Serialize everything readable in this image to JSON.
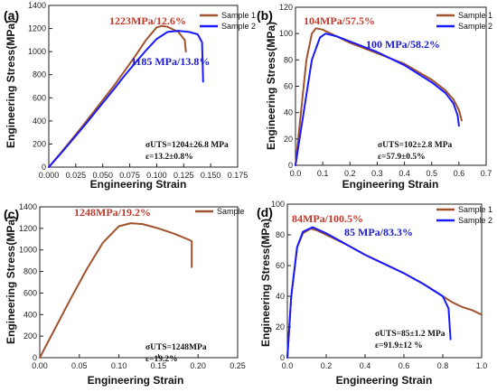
{
  "colors": {
    "sample1": "#a0522d",
    "sample2": "#1a1aff",
    "annotation_red": "#c0392b",
    "annotation_blue": "#1a1acd"
  },
  "chart_data": [
    {
      "panel_label": "(a)",
      "type": "line",
      "xlabel": "Engineering Strain",
      "ylabel": "Engineering Stress(MPa)",
      "xlim": [
        0,
        0.175
      ],
      "ylim": [
        0,
        1400
      ],
      "xticks": [
        "0.000",
        "0.025",
        "0.050",
        "0.075",
        "0.100",
        "0.125",
        "0.150",
        "0.175"
      ],
      "yticks": [
        "0",
        "200",
        "400",
        "600",
        "800",
        "1000",
        "1200",
        "1400"
      ],
      "legend": [
        "Sample 1",
        "Sample 2"
      ],
      "legend_position": "top-right",
      "annotations": [
        "1223MPa/12.6%",
        "1185 MPa/13.8%"
      ],
      "stats": [
        "σUTS=1204±26.8 MPa",
        "ε=13.2±0.8%"
      ],
      "series": [
        {
          "name": "Sample 1",
          "color": "#a0522d",
          "x": [
            0,
            0.01,
            0.02,
            0.03,
            0.04,
            0.05,
            0.06,
            0.07,
            0.08,
            0.09,
            0.1,
            0.105,
            0.11,
            0.12,
            0.126,
            0.127
          ],
          "y": [
            0,
            110,
            225,
            340,
            460,
            580,
            700,
            830,
            960,
            1100,
            1210,
            1223,
            1215,
            1170,
            1100,
            1000
          ]
        },
        {
          "name": "Sample 2",
          "color": "#1a1aff",
          "x": [
            0,
            0.01,
            0.02,
            0.03,
            0.04,
            0.05,
            0.06,
            0.07,
            0.08,
            0.09,
            0.1,
            0.11,
            0.12,
            0.13,
            0.138,
            0.142,
            0.143
          ],
          "y": [
            0,
            105,
            215,
            325,
            440,
            555,
            670,
            790,
            900,
            1010,
            1110,
            1170,
            1180,
            1170,
            1150,
            1080,
            740
          ]
        }
      ]
    },
    {
      "panel_label": "(b)",
      "type": "line",
      "xlabel": "Engineering Strain",
      "ylabel": "Engineering Stress(MPa)",
      "xlim": [
        0,
        0.7
      ],
      "ylim": [
        0,
        120
      ],
      "xticks": [
        "0.0",
        "0.1",
        "0.2",
        "0.3",
        "0.4",
        "0.5",
        "0.6",
        "0.7"
      ],
      "yticks": [
        "0",
        "20",
        "40",
        "60",
        "80",
        "100",
        "120"
      ],
      "legend": [
        "Sample 1",
        "Sample 2"
      ],
      "legend_position": "top-right",
      "annotations": [
        "104MPa/57.5%",
        "100 MPa/58.2%"
      ],
      "stats": [
        "σUTS=102±2.8 MPa",
        "ε=57.9±0.5%"
      ],
      "series": [
        {
          "name": "Sample 1",
          "color": "#a0522d",
          "x": [
            0,
            0.02,
            0.04,
            0.06,
            0.075,
            0.1,
            0.15,
            0.2,
            0.3,
            0.4,
            0.5,
            0.55,
            0.58,
            0.6,
            0.61
          ],
          "y": [
            0,
            40,
            80,
            100,
            104,
            103,
            98,
            93,
            85,
            77,
            65,
            57,
            50,
            42,
            34
          ]
        },
        {
          "name": "Sample 2",
          "color": "#1a1aff",
          "x": [
            0,
            0.03,
            0.06,
            0.09,
            0.11,
            0.15,
            0.2,
            0.3,
            0.4,
            0.5,
            0.55,
            0.58,
            0.595,
            0.6
          ],
          "y": [
            0,
            40,
            80,
            97,
            100,
            98,
            94,
            86,
            76,
            63,
            55,
            47,
            38,
            30
          ]
        }
      ]
    },
    {
      "panel_label": "(c)",
      "type": "line",
      "xlabel": "Engineering Strain",
      "ylabel": "Engineering Stress(MPa)",
      "xlim": [
        0,
        0.25
      ],
      "ylim": [
        0,
        1400
      ],
      "xticks": [
        "0.00",
        "0.05",
        "0.10",
        "0.15",
        "0.20",
        "0.25"
      ],
      "yticks": [
        "0",
        "200",
        "400",
        "600",
        "800",
        "1000",
        "1200",
        "1400"
      ],
      "legend": [
        "Sample"
      ],
      "legend_position": "top-right",
      "annotations": [
        "1248MPa/19.2%"
      ],
      "stats": [
        "σUTS=1248MPa",
        "ε=19.2%"
      ],
      "series": [
        {
          "name": "Sample",
          "color": "#a0522d",
          "x": [
            0,
            0.02,
            0.04,
            0.06,
            0.08,
            0.1,
            0.115,
            0.13,
            0.15,
            0.17,
            0.19,
            0.192,
            0.192
          ],
          "y": [
            0,
            280,
            560,
            830,
            1070,
            1220,
            1248,
            1240,
            1200,
            1150,
            1090,
            1080,
            840
          ]
        }
      ]
    },
    {
      "panel_label": "(d)",
      "type": "line",
      "xlabel": "Engineering Strain",
      "ylabel": "Engineering Stress(MPa)",
      "xlim": [
        0,
        1.0
      ],
      "ylim": [
        0,
        100
      ],
      "xticks": [
        "0.0",
        "0.2",
        "0.4",
        "0.6",
        "0.8",
        "1.0"
      ],
      "yticks": [
        "0",
        "20",
        "40",
        "60",
        "80",
        "100"
      ],
      "legend": [
        "Sample 1",
        "Sample 2"
      ],
      "legend_position": "top-right",
      "annotations": [
        "84MPa/100.5%",
        "85 MPa/83.3%"
      ],
      "stats": [
        "σUTS=85±1.2 MPa",
        "ε=91.9±12 %"
      ],
      "series": [
        {
          "name": "Sample 1",
          "color": "#a0522d",
          "x": [
            0,
            0.02,
            0.05,
            0.08,
            0.12,
            0.15,
            0.2,
            0.3,
            0.4,
            0.5,
            0.6,
            0.7,
            0.8,
            0.85,
            0.9,
            0.95,
            1.0
          ],
          "y": [
            0,
            40,
            72,
            81,
            84,
            83,
            80,
            74,
            67,
            61,
            55,
            48,
            40,
            36,
            33,
            31,
            28
          ]
        },
        {
          "name": "Sample 2",
          "color": "#1a1aff",
          "x": [
            0,
            0.02,
            0.05,
            0.08,
            0.13,
            0.2,
            0.3,
            0.4,
            0.5,
            0.6,
            0.7,
            0.8,
            0.83,
            0.84
          ],
          "y": [
            0,
            40,
            72,
            82,
            85,
            81,
            74,
            67,
            61,
            55,
            48,
            40,
            32,
            12
          ]
        }
      ]
    }
  ]
}
